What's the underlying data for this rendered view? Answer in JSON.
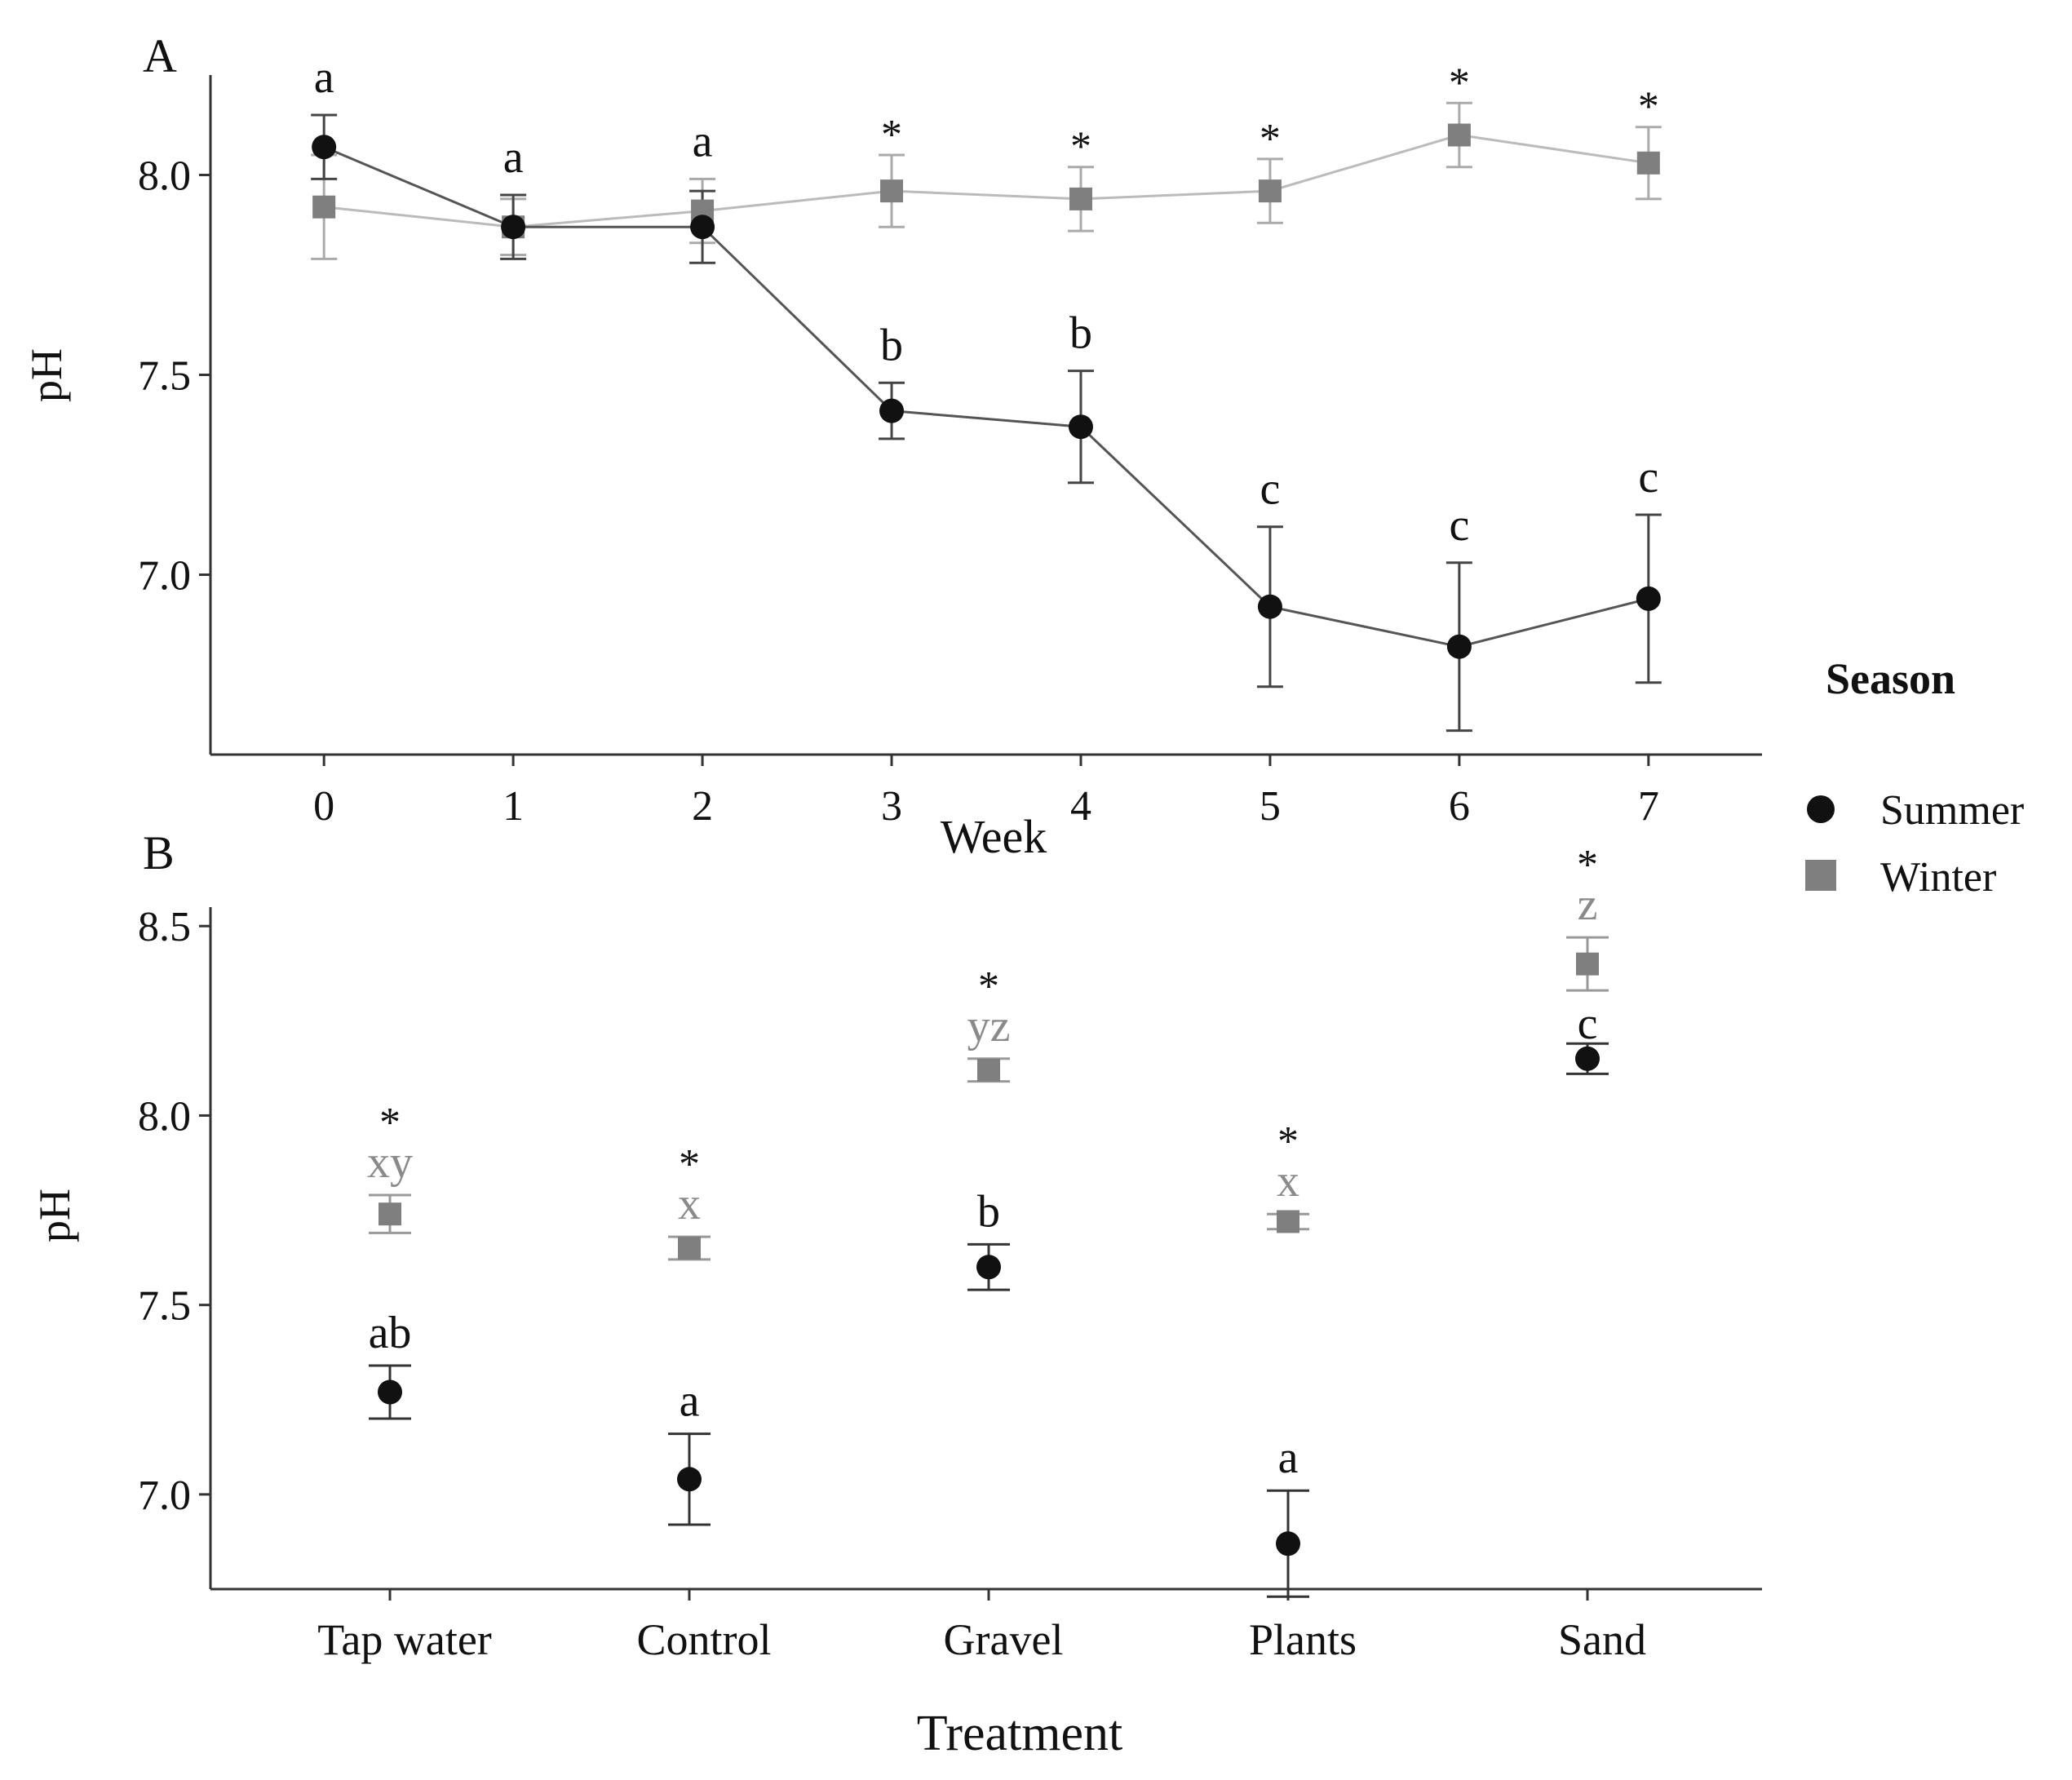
{
  "colors": {
    "summer": "#111111",
    "winter": "#7f7f7f",
    "winter_err": "#aaaaaa",
    "axis": "#333333"
  },
  "legend": {
    "title": "Season",
    "items": [
      {
        "label": "Summer",
        "shape": "circle",
        "color": "#111111"
      },
      {
        "label": "Winter",
        "shape": "square",
        "color": "#7f7f7f"
      }
    ]
  },
  "chart_data": [
    {
      "panel": "A",
      "type": "line",
      "xlabel": "Week",
      "ylabel": "pH",
      "x": [
        0,
        1,
        2,
        3,
        4,
        5,
        6,
        7
      ],
      "xlim": [
        -0.6,
        7.6
      ],
      "ylim": [
        6.55,
        8.25
      ],
      "yticks": [
        7.0,
        7.5,
        8.0
      ],
      "ytick_labels": [
        "7.0",
        "7.5",
        "8.0"
      ],
      "series": [
        {
          "name": "Summer",
          "values": [
            8.07,
            7.87,
            7.87,
            7.41,
            7.37,
            6.92,
            6.82,
            6.94
          ],
          "err": [
            0.08,
            0.08,
            0.09,
            0.07,
            0.14,
            0.2,
            0.21,
            0.21
          ],
          "labels": [
            "a",
            "a",
            "a",
            "b",
            "b",
            "c",
            "c",
            "c"
          ]
        },
        {
          "name": "Winter",
          "values": [
            7.92,
            7.87,
            7.91,
            7.96,
            7.94,
            7.96,
            8.1,
            8.03
          ],
          "err": [
            0.13,
            0.07,
            0.08,
            0.09,
            0.08,
            0.08,
            0.08,
            0.09
          ],
          "labels": [
            "",
            "",
            "",
            "*",
            "*",
            "*",
            "*",
            "*"
          ]
        }
      ]
    },
    {
      "panel": "B",
      "type": "scatter",
      "xlabel": "Treatment",
      "ylabel": "pH",
      "categories": [
        "Tap water",
        "Control",
        "Gravel",
        "Plants",
        "Sand"
      ],
      "ylim": [
        6.75,
        8.55
      ],
      "yticks": [
        7.0,
        7.5,
        8.0,
        8.5
      ],
      "ytick_labels": [
        "7.0",
        "7.5",
        "8.0",
        "8.5"
      ],
      "series": [
        {
          "name": "Summer",
          "values": [
            7.27,
            7.04,
            7.6,
            6.87,
            8.15
          ],
          "err": [
            0.07,
            0.12,
            0.06,
            0.14,
            0.04
          ],
          "labels": [
            "ab",
            "a",
            "b",
            "a",
            "c"
          ]
        },
        {
          "name": "Winter",
          "values": [
            7.74,
            7.65,
            8.12,
            7.72,
            8.4
          ],
          "err": [
            0.05,
            0.03,
            0.03,
            0.02,
            0.07
          ],
          "labels": [
            "xy",
            "x",
            "yz",
            "x",
            "z"
          ],
          "sig": [
            "*",
            "*",
            "*",
            "*",
            "*"
          ]
        }
      ]
    }
  ]
}
